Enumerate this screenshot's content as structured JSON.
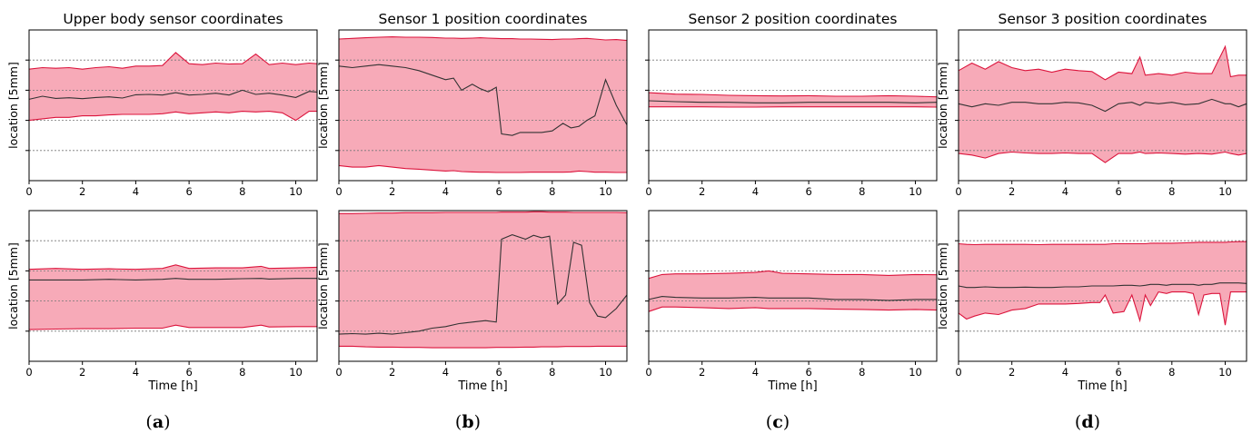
{
  "panel_labels": [
    {
      "letter": "a",
      "open": "(",
      "close": ")"
    },
    {
      "letter": "b",
      "open": "(",
      "close": ")"
    },
    {
      "letter": "c",
      "open": "(",
      "close": ")"
    },
    {
      "letter": "d",
      "open": "(",
      "close": ")"
    }
  ],
  "colors": {
    "band_fill": "#f7aab8",
    "band_edge": "#dc143c",
    "mean_line": "#333333",
    "grid": "#777777",
    "axis": "#000000"
  },
  "chart_data": [
    {
      "type": "area",
      "title": "Upper body sensor coordinates",
      "row": 0,
      "col": 0,
      "xlabel": "",
      "ylabel": "location [5mm]",
      "xlim": [
        0,
        10.8
      ],
      "ylim": [
        0,
        5
      ],
      "xticks": [
        0,
        2,
        4,
        6,
        8,
        10
      ],
      "grid_y": [
        1,
        2,
        3,
        4
      ],
      "grid": true,
      "x": [
        0,
        0.5,
        1,
        1.5,
        2,
        2.5,
        3,
        3.5,
        4,
        4.5,
        5,
        5.5,
        6,
        6.5,
        7,
        7.5,
        8,
        8.5,
        9,
        9.5,
        10,
        10.5,
        10.8
      ],
      "series": [
        {
          "role": "upper",
          "values": [
            3.7,
            3.75,
            3.73,
            3.75,
            3.7,
            3.75,
            3.78,
            3.73,
            3.8,
            3.8,
            3.82,
            4.25,
            3.88,
            3.85,
            3.9,
            3.87,
            3.88,
            4.2,
            3.85,
            3.9,
            3.85,
            3.9,
            3.88
          ]
        },
        {
          "role": "mean",
          "values": [
            2.7,
            2.8,
            2.73,
            2.75,
            2.72,
            2.76,
            2.78,
            2.74,
            2.85,
            2.86,
            2.84,
            2.92,
            2.84,
            2.86,
            2.9,
            2.84,
            3.0,
            2.86,
            2.9,
            2.84,
            2.76,
            2.96,
            2.94
          ]
        },
        {
          "role": "lower",
          "values": [
            2.0,
            2.05,
            2.1,
            2.1,
            2.15,
            2.15,
            2.18,
            2.2,
            2.2,
            2.2,
            2.22,
            2.28,
            2.22,
            2.25,
            2.28,
            2.25,
            2.3,
            2.28,
            2.3,
            2.25,
            2.0,
            2.3,
            2.3
          ]
        }
      ]
    },
    {
      "type": "area",
      "title": "Sensor 1 position coordinates",
      "row": 0,
      "col": 1,
      "xlabel": "",
      "ylabel": "location [5mm]",
      "xlim": [
        0,
        10.8
      ],
      "ylim": [
        0,
        5
      ],
      "xticks": [
        0,
        2,
        4,
        6,
        8,
        10
      ],
      "grid_y": [
        1,
        2,
        3,
        4
      ],
      "grid": true,
      "x": [
        0,
        0.5,
        1,
        1.5,
        2,
        2.5,
        3,
        3.5,
        4,
        4.3,
        4.6,
        5,
        5.3,
        5.6,
        5.9,
        6.1,
        6.5,
        6.8,
        7.2,
        7.6,
        8,
        8.4,
        8.7,
        9,
        9.3,
        9.6,
        10,
        10.4,
        10.8
      ],
      "series": [
        {
          "role": "upper",
          "values": [
            4.7,
            4.72,
            4.74,
            4.76,
            4.77,
            4.76,
            4.76,
            4.75,
            4.73,
            4.73,
            4.72,
            4.73,
            4.74,
            4.73,
            4.72,
            4.71,
            4.71,
            4.7,
            4.7,
            4.69,
            4.68,
            4.7,
            4.7,
            4.71,
            4.72,
            4.7,
            4.67,
            4.68,
            4.65
          ]
        },
        {
          "role": "mean",
          "values": [
            3.8,
            3.75,
            3.8,
            3.85,
            3.8,
            3.75,
            3.65,
            3.5,
            3.35,
            3.4,
            3.0,
            3.2,
            3.05,
            2.95,
            3.1,
            1.55,
            1.5,
            1.6,
            1.6,
            1.6,
            1.65,
            1.9,
            1.75,
            1.8,
            2.0,
            2.15,
            3.35,
            2.5,
            1.85
          ]
        },
        {
          "role": "lower",
          "values": [
            0.5,
            0.45,
            0.45,
            0.5,
            0.45,
            0.4,
            0.38,
            0.35,
            0.32,
            0.33,
            0.3,
            0.29,
            0.28,
            0.28,
            0.27,
            0.27,
            0.27,
            0.27,
            0.28,
            0.28,
            0.28,
            0.28,
            0.29,
            0.32,
            0.3,
            0.28,
            0.28,
            0.27,
            0.27
          ]
        }
      ]
    },
    {
      "type": "area",
      "title": "Sensor 2 position coordinates",
      "row": 0,
      "col": 2,
      "xlabel": "",
      "ylabel": "",
      "xlim": [
        0,
        10.8
      ],
      "ylim": [
        0,
        5
      ],
      "xticks": [
        0,
        2,
        4,
        6,
        8,
        10
      ],
      "grid_y": [
        1,
        2,
        3,
        4
      ],
      "grid": true,
      "x": [
        0,
        1,
        2,
        3,
        4,
        5,
        6,
        7,
        8,
        9,
        10,
        10.8
      ],
      "series": [
        {
          "role": "upper",
          "values": [
            2.92,
            2.87,
            2.86,
            2.83,
            2.82,
            2.81,
            2.82,
            2.8,
            2.8,
            2.82,
            2.8,
            2.78
          ]
        },
        {
          "role": "mean",
          "values": [
            2.65,
            2.62,
            2.6,
            2.6,
            2.58,
            2.58,
            2.6,
            2.6,
            2.6,
            2.6,
            2.58,
            2.6
          ]
        },
        {
          "role": "lower",
          "values": [
            2.45,
            2.45,
            2.45,
            2.44,
            2.44,
            2.45,
            2.45,
            2.45,
            2.45,
            2.45,
            2.45,
            2.44
          ]
        }
      ]
    },
    {
      "type": "area",
      "title": "Sensor 3 position coordinates",
      "row": 0,
      "col": 3,
      "xlabel": "",
      "ylabel": "location [5mm]",
      "xlim": [
        0,
        10.8
      ],
      "ylim": [
        0,
        5
      ],
      "xticks": [
        0,
        2,
        4,
        6,
        8,
        10
      ],
      "grid_y": [
        1,
        2,
        3,
        4
      ],
      "grid": true,
      "x": [
        0,
        0.5,
        1,
        1.5,
        2,
        2.5,
        3,
        3.5,
        4,
        4.5,
        5,
        5.5,
        6,
        6.5,
        6.8,
        7,
        7.5,
        8,
        8.5,
        9,
        9.5,
        10,
        10.2,
        10.5,
        10.8
      ],
      "series": [
        {
          "role": "upper",
          "values": [
            3.65,
            3.9,
            3.7,
            3.95,
            3.75,
            3.65,
            3.7,
            3.6,
            3.7,
            3.65,
            3.62,
            3.35,
            3.6,
            3.55,
            4.1,
            3.5,
            3.55,
            3.5,
            3.6,
            3.55,
            3.55,
            4.45,
            3.45,
            3.5,
            3.5
          ]
        },
        {
          "role": "mean",
          "values": [
            2.55,
            2.45,
            2.55,
            2.5,
            2.6,
            2.6,
            2.55,
            2.55,
            2.6,
            2.58,
            2.5,
            2.3,
            2.55,
            2.6,
            2.5,
            2.6,
            2.55,
            2.6,
            2.52,
            2.55,
            2.7,
            2.55,
            2.55,
            2.45,
            2.55
          ]
        },
        {
          "role": "lower",
          "values": [
            0.9,
            0.85,
            0.75,
            0.9,
            0.95,
            0.92,
            0.9,
            0.9,
            0.92,
            0.9,
            0.9,
            0.6,
            0.9,
            0.9,
            0.95,
            0.9,
            0.92,
            0.9,
            0.88,
            0.9,
            0.88,
            0.95,
            0.9,
            0.85,
            0.9
          ]
        }
      ]
    },
    {
      "type": "area",
      "title": "",
      "row": 1,
      "col": 0,
      "xlabel": "Time [h]",
      "ylabel": "location [5mm]",
      "xlim": [
        0,
        10.8
      ],
      "ylim": [
        0,
        5
      ],
      "xticks": [
        0,
        2,
        4,
        6,
        8,
        10
      ],
      "grid_y": [
        1,
        2,
        3,
        4
      ],
      "grid": true,
      "x": [
        0,
        1,
        2,
        3,
        4,
        5,
        5.5,
        6,
        7,
        8,
        8.7,
        9,
        10,
        10.8
      ],
      "series": [
        {
          "role": "upper",
          "values": [
            3.05,
            3.08,
            3.05,
            3.07,
            3.05,
            3.08,
            3.2,
            3.08,
            3.1,
            3.1,
            3.15,
            3.08,
            3.1,
            3.12
          ]
        },
        {
          "role": "mean",
          "values": [
            2.7,
            2.7,
            2.7,
            2.72,
            2.7,
            2.72,
            2.75,
            2.72,
            2.72,
            2.74,
            2.75,
            2.73,
            2.75,
            2.75
          ]
        },
        {
          "role": "lower",
          "values": [
            1.05,
            1.07,
            1.08,
            1.08,
            1.1,
            1.1,
            1.2,
            1.12,
            1.12,
            1.12,
            1.2,
            1.14,
            1.15,
            1.15
          ]
        }
      ]
    },
    {
      "type": "area",
      "title": "",
      "row": 1,
      "col": 1,
      "xlabel": "Time [h]",
      "ylabel": "location [5mm]",
      "xlim": [
        0,
        10.8
      ],
      "ylim": [
        0,
        5
      ],
      "xticks": [
        0,
        2,
        4,
        6,
        8,
        10
      ],
      "grid_y": [
        1,
        2,
        3,
        4
      ],
      "grid": true,
      "x": [
        0,
        0.5,
        1,
        1.5,
        2,
        2.5,
        3,
        3.5,
        4,
        4.5,
        5,
        5.5,
        5.9,
        6.1,
        6.5,
        7,
        7.3,
        7.6,
        7.9,
        8.2,
        8.5,
        8.8,
        9.1,
        9.4,
        9.7,
        10,
        10.4,
        10.8
      ],
      "series": [
        {
          "role": "upper",
          "values": [
            4.9,
            4.9,
            4.91,
            4.92,
            4.92,
            4.93,
            4.93,
            4.93,
            4.94,
            4.94,
            4.94,
            4.94,
            4.94,
            4.95,
            4.95,
            4.95,
            4.96,
            4.96,
            4.95,
            4.95,
            4.95,
            4.94,
            4.94,
            4.94,
            4.94,
            4.94,
            4.94,
            4.93
          ]
        },
        {
          "role": "mean",
          "values": [
            0.9,
            0.92,
            0.9,
            0.93,
            0.9,
            0.95,
            1.0,
            1.1,
            1.15,
            1.25,
            1.3,
            1.35,
            1.3,
            4.05,
            4.2,
            4.05,
            4.18,
            4.1,
            4.15,
            1.9,
            2.2,
            3.95,
            3.85,
            1.95,
            1.5,
            1.45,
            1.75,
            2.2
          ]
        },
        {
          "role": "lower",
          "values": [
            0.5,
            0.5,
            0.48,
            0.47,
            0.47,
            0.46,
            0.46,
            0.45,
            0.45,
            0.45,
            0.45,
            0.45,
            0.46,
            0.46,
            0.46,
            0.47,
            0.47,
            0.48,
            0.48,
            0.48,
            0.49,
            0.49,
            0.49,
            0.49,
            0.5,
            0.5,
            0.5,
            0.5
          ]
        }
      ]
    },
    {
      "type": "area",
      "title": "",
      "row": 1,
      "col": 2,
      "xlabel": "Time [h]",
      "ylabel": "",
      "xlim": [
        0,
        10.8
      ],
      "ylim": [
        0,
        5
      ],
      "xticks": [
        0,
        2,
        4,
        6,
        8,
        10
      ],
      "grid_y": [
        1,
        2,
        3,
        4
      ],
      "grid": true,
      "x": [
        0,
        0.5,
        1,
        2,
        3,
        4,
        4.5,
        5,
        6,
        7,
        8,
        9,
        10,
        10.8
      ],
      "series": [
        {
          "role": "upper",
          "values": [
            2.75,
            2.88,
            2.9,
            2.9,
            2.92,
            2.95,
            3.0,
            2.92,
            2.9,
            2.88,
            2.88,
            2.85,
            2.88,
            2.87
          ]
        },
        {
          "role": "mean",
          "values": [
            2.05,
            2.15,
            2.12,
            2.1,
            2.1,
            2.12,
            2.1,
            2.1,
            2.1,
            2.05,
            2.05,
            2.02,
            2.05,
            2.05
          ]
        },
        {
          "role": "lower",
          "values": [
            1.65,
            1.8,
            1.8,
            1.78,
            1.75,
            1.78,
            1.75,
            1.75,
            1.75,
            1.73,
            1.72,
            1.7,
            1.72,
            1.7
          ]
        }
      ]
    },
    {
      "type": "area",
      "title": "",
      "row": 1,
      "col": 3,
      "xlabel": "Time [h]",
      "ylabel": "location [5mm]",
      "xlim": [
        0,
        10.8
      ],
      "ylim": [
        0,
        5
      ],
      "xticks": [
        0,
        2,
        4,
        6,
        8,
        10
      ],
      "grid_y": [
        1,
        2,
        3,
        4
      ],
      "grid": true,
      "x": [
        0,
        0.3,
        0.6,
        1,
        1.5,
        2,
        2.5,
        3,
        3.5,
        4,
        4.5,
        5,
        5.3,
        5.5,
        5.8,
        6.2,
        6.5,
        6.8,
        7.0,
        7.2,
        7.5,
        7.8,
        8,
        8.5,
        8.8,
        9.0,
        9.2,
        9.5,
        9.8,
        10.0,
        10.2,
        10.5,
        10.8
      ],
      "series": [
        {
          "role": "upper",
          "values": [
            3.9,
            3.88,
            3.87,
            3.88,
            3.88,
            3.88,
            3.88,
            3.87,
            3.88,
            3.88,
            3.88,
            3.88,
            3.88,
            3.88,
            3.9,
            3.9,
            3.9,
            3.9,
            3.9,
            3.92,
            3.92,
            3.92,
            3.92,
            3.93,
            3.94,
            3.95,
            3.95,
            3.95,
            3.95,
            3.95,
            3.96,
            3.97,
            3.97
          ]
        },
        {
          "role": "mean",
          "values": [
            2.5,
            2.45,
            2.45,
            2.47,
            2.45,
            2.45,
            2.46,
            2.45,
            2.45,
            2.47,
            2.47,
            2.5,
            2.5,
            2.5,
            2.5,
            2.52,
            2.52,
            2.5,
            2.52,
            2.55,
            2.55,
            2.52,
            2.55,
            2.55,
            2.55,
            2.52,
            2.55,
            2.55,
            2.6,
            2.6,
            2.6,
            2.6,
            2.58
          ]
        },
        {
          "role": "lower",
          "values": [
            1.6,
            1.4,
            1.5,
            1.6,
            1.55,
            1.7,
            1.75,
            1.9,
            1.9,
            1.9,
            1.92,
            1.95,
            1.95,
            2.2,
            1.6,
            1.65,
            2.2,
            1.35,
            2.2,
            1.85,
            2.3,
            2.25,
            2.3,
            2.3,
            2.25,
            1.55,
            2.2,
            2.25,
            2.25,
            1.2,
            2.3,
            2.3,
            2.3
          ]
        }
      ]
    }
  ]
}
